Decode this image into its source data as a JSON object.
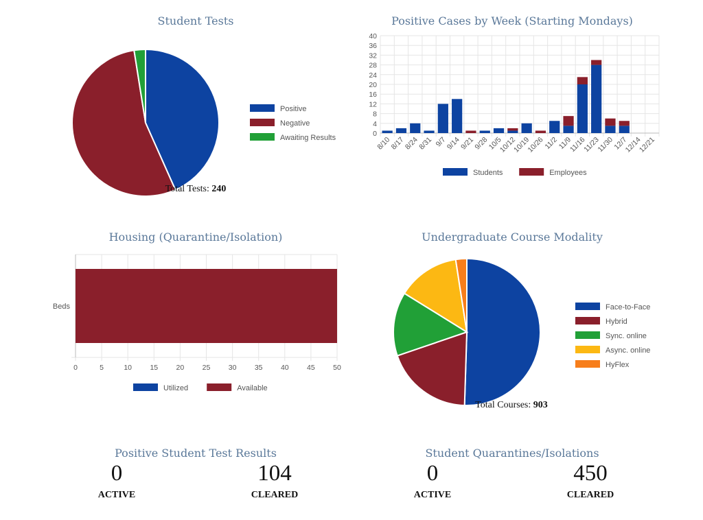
{
  "colors": {
    "blue": "#0d43a1",
    "red": "#8a1f2b",
    "green": "#21a037",
    "yellow": "#fcb813",
    "orange": "#f77e1b",
    "title": "#5a7899"
  },
  "chart_data": [
    {
      "id": "student-tests",
      "type": "pie",
      "title": "Student Tests",
      "labels": [
        "Positive",
        "Negative",
        "Awaiting Results"
      ],
      "values": [
        104,
        130,
        6
      ],
      "colors": [
        "#0d43a1",
        "#8a1f2b",
        "#21a037"
      ],
      "legend": "right",
      "total_label": "Total Tests:",
      "total_value": "240"
    },
    {
      "id": "positive-cases",
      "type": "bar",
      "stacked": true,
      "title": "Positive Cases by Week (Starting Mondays)",
      "categories": [
        "8/10",
        "8/17",
        "8/24",
        "8/31",
        "9/7",
        "9/14",
        "9/21",
        "9/28",
        "10/5",
        "10/12",
        "10/19",
        "10/26",
        "11/2",
        "11/9",
        "11/16",
        "11/23",
        "11/30",
        "12/7",
        "12/14",
        "12/21"
      ],
      "series": [
        {
          "name": "Students",
          "color": "#0d43a1",
          "values": [
            1,
            2,
            4,
            1,
            12,
            14,
            0,
            1,
            2,
            1,
            4,
            0,
            5,
            3,
            20,
            28,
            3,
            3,
            0,
            0
          ]
        },
        {
          "name": "Employees",
          "color": "#8a1f2b",
          "values": [
            0,
            0,
            0,
            0,
            0,
            0,
            1,
            0,
            0,
            1,
            0,
            1,
            0,
            4,
            3,
            2,
            3,
            2,
            0,
            0
          ]
        }
      ],
      "ylim": [
        0,
        40
      ],
      "yticks": [
        0,
        4,
        8,
        12,
        16,
        20,
        24,
        28,
        32,
        36,
        40
      ],
      "grid": true,
      "legend": "bottom"
    },
    {
      "id": "housing",
      "type": "bar",
      "orientation": "horizontal",
      "stacked": true,
      "title": "Housing (Quarantine/Isolation)",
      "categories": [
        "Beds"
      ],
      "series": [
        {
          "name": "Utilized",
          "color": "#0d43a1",
          "values": [
            0
          ]
        },
        {
          "name": "Available",
          "color": "#8a1f2b",
          "values": [
            50
          ]
        }
      ],
      "xlim": [
        0,
        50
      ],
      "xticks": [
        0,
        5,
        10,
        15,
        20,
        25,
        30,
        35,
        40,
        45,
        50
      ],
      "grid": true,
      "legend": "bottom"
    },
    {
      "id": "course-modality",
      "type": "pie",
      "title": "Undergraduate Course Modality",
      "labels": [
        "Face-to-Face",
        "Hybrid",
        "Sync. online",
        "Async. online",
        "HyFlex"
      ],
      "values": [
        456,
        174,
        127,
        124,
        22
      ],
      "colors": [
        "#0d43a1",
        "#8a1f2b",
        "#21a037",
        "#fcb813",
        "#f77e1b"
      ],
      "legend": "right",
      "total_label": "Total Courses:",
      "total_value": "903"
    }
  ],
  "stats": [
    {
      "title": "Positive Student Test Results",
      "active_value": "0",
      "active_label": "ACTIVE",
      "cleared_value": "104",
      "cleared_label": "CLEARED"
    },
    {
      "title": "Student Quarantines/Isolations",
      "active_value": "0",
      "active_label": "ACTIVE",
      "cleared_value": "450",
      "cleared_label": "CLEARED"
    }
  ]
}
